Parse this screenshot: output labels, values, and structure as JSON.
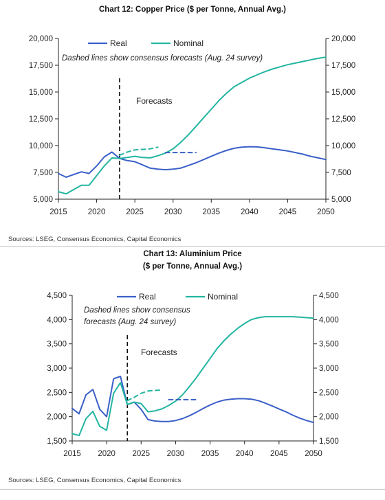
{
  "chart_data": [
    {
      "type": "line",
      "title": "Chart 12: Copper Price ($ per Tonne, Annual Avg.)",
      "annotation": "Dashed lines show consensus forecasts (Aug. 24 survey)",
      "forecast_label": "Forecasts",
      "forecast_start_year": 2023,
      "sources": "Sources: LSEG, Consensus Economics, Capital Economics",
      "xlim": [
        2015,
        2050
      ],
      "x_ticks": [
        2015,
        2020,
        2025,
        2030,
        2035,
        2040,
        2045,
        2050
      ],
      "ylim": [
        5000,
        20000
      ],
      "y_ticks": [
        5000,
        7500,
        10000,
        12500,
        15000,
        17500,
        20000
      ],
      "y_tick_labels": [
        "5,000",
        "7,500",
        "10,000",
        "12,500",
        "15,000",
        "17,500",
        "20,000"
      ],
      "legend": "top-left",
      "series": [
        {
          "name": "Real",
          "color": "#3a5fc8",
          "points": [
            [
              2015,
              7400
            ],
            [
              2016,
              7050
            ],
            [
              2017,
              7300
            ],
            [
              2018,
              7550
            ],
            [
              2019,
              7400
            ],
            [
              2020,
              8100
            ],
            [
              2021,
              8950
            ],
            [
              2022,
              9400
            ],
            [
              2023,
              8800
            ],
            [
              2024,
              8600
            ],
            [
              2025,
              8500
            ],
            [
              2026,
              8200
            ],
            [
              2027,
              7900
            ],
            [
              2028,
              7800
            ],
            [
              2029,
              7750
            ],
            [
              2030,
              7800
            ],
            [
              2031,
              7900
            ],
            [
              2032,
              8150
            ],
            [
              2033,
              8400
            ],
            [
              2034,
              8700
            ],
            [
              2035,
              9000
            ],
            [
              2036,
              9300
            ],
            [
              2037,
              9550
            ],
            [
              2038,
              9750
            ],
            [
              2039,
              9850
            ],
            [
              2040,
              9900
            ],
            [
              2041,
              9880
            ],
            [
              2042,
              9800
            ],
            [
              2043,
              9700
            ],
            [
              2044,
              9600
            ],
            [
              2045,
              9500
            ],
            [
              2046,
              9350
            ],
            [
              2047,
              9200
            ],
            [
              2048,
              9000
            ],
            [
              2049,
              8850
            ],
            [
              2050,
              8700
            ]
          ]
        },
        {
          "name": "Nominal",
          "color": "#22b5a0",
          "points": [
            [
              2015,
              5700
            ],
            [
              2016,
              5500
            ],
            [
              2017,
              5900
            ],
            [
              2018,
              6300
            ],
            [
              2019,
              6300
            ],
            [
              2020,
              7200
            ],
            [
              2021,
              8100
            ],
            [
              2022,
              8850
            ],
            [
              2023,
              8800
            ],
            [
              2024,
              8900
            ],
            [
              2025,
              9000
            ],
            [
              2026,
              8900
            ],
            [
              2027,
              8850
            ],
            [
              2028,
              9050
            ],
            [
              2029,
              9300
            ],
            [
              2030,
              9700
            ],
            [
              2031,
              10300
            ],
            [
              2032,
              11000
            ],
            [
              2033,
              11800
            ],
            [
              2034,
              12600
            ],
            [
              2035,
              13400
            ],
            [
              2036,
              14200
            ],
            [
              2037,
              14900
            ],
            [
              2038,
              15500
            ],
            [
              2039,
              15900
            ],
            [
              2040,
              16300
            ],
            [
              2041,
              16600
            ],
            [
              2042,
              16900
            ],
            [
              2043,
              17150
            ],
            [
              2044,
              17350
            ],
            [
              2045,
              17550
            ],
            [
              2046,
              17700
            ],
            [
              2047,
              17850
            ],
            [
              2048,
              18000
            ],
            [
              2049,
              18150
            ],
            [
              2050,
              18250
            ]
          ]
        },
        {
          "name": "Consensus (Real)",
          "color": "#3a5fc8",
          "dashed": true,
          "points": [
            [
              2029,
              9350
            ],
            [
              2033,
              9350
            ]
          ]
        },
        {
          "name": "Consensus (Nominal)",
          "color": "#22b5a0",
          "dashed": true,
          "points": [
            [
              2023,
              9100
            ],
            [
              2024,
              9400
            ],
            [
              2025,
              9600
            ],
            [
              2026,
              9650
            ],
            [
              2027,
              9700
            ],
            [
              2028,
              9850
            ]
          ]
        }
      ]
    },
    {
      "type": "line",
      "title": "Chart 13: Aluminium Price",
      "title_line2": "($ per Tonne, Annual Avg.)",
      "annotation_lines": [
        "Dashed lines show consensus",
        "forecasts (Aug. 24 survey)"
      ],
      "forecast_label": "Forecasts",
      "forecast_start_year": 2023,
      "sources": "Sources: LSEG, Consensus Economics, Capital Economics",
      "xlim": [
        2015,
        2050
      ],
      "x_ticks": [
        2015,
        2020,
        2025,
        2030,
        2035,
        2040,
        2045,
        2050
      ],
      "ylim": [
        1500,
        4500
      ],
      "y_ticks": [
        1500,
        2000,
        2500,
        3000,
        3500,
        4000,
        4500
      ],
      "y_tick_labels": [
        "1,500",
        "2,000",
        "2,500",
        "3,000",
        "3,500",
        "4,000",
        "4,500"
      ],
      "legend": "top-center",
      "series": [
        {
          "name": "Real",
          "color": "#3a5fc8",
          "points": [
            [
              2015,
              2170
            ],
            [
              2016,
              2060
            ],
            [
              2017,
              2450
            ],
            [
              2018,
              2560
            ],
            [
              2019,
              2150
            ],
            [
              2020,
              2000
            ],
            [
              2021,
              2780
            ],
            [
              2022,
              2830
            ],
            [
              2023,
              2250
            ],
            [
              2024,
              2300
            ],
            [
              2025,
              2150
            ],
            [
              2026,
              1940
            ],
            [
              2027,
              1910
            ],
            [
              2028,
              1900
            ],
            [
              2029,
              1900
            ],
            [
              2030,
              1920
            ],
            [
              2031,
              1960
            ],
            [
              2032,
              2020
            ],
            [
              2033,
              2090
            ],
            [
              2034,
              2170
            ],
            [
              2035,
              2240
            ],
            [
              2036,
              2300
            ],
            [
              2037,
              2340
            ],
            [
              2038,
              2360
            ],
            [
              2039,
              2370
            ],
            [
              2040,
              2370
            ],
            [
              2041,
              2360
            ],
            [
              2042,
              2330
            ],
            [
              2043,
              2280
            ],
            [
              2044,
              2220
            ],
            [
              2045,
              2160
            ],
            [
              2046,
              2100
            ],
            [
              2047,
              2030
            ],
            [
              2048,
              1970
            ],
            [
              2049,
              1920
            ],
            [
              2050,
              1880
            ]
          ]
        },
        {
          "name": "Nominal",
          "color": "#22b5a0",
          "points": [
            [
              2015,
              1650
            ],
            [
              2016,
              1610
            ],
            [
              2017,
              1960
            ],
            [
              2018,
              2110
            ],
            [
              2019,
              1800
            ],
            [
              2020,
              1720
            ],
            [
              2021,
              2480
            ],
            [
              2022,
              2700
            ],
            [
              2023,
              2250
            ],
            [
              2024,
              2300
            ],
            [
              2025,
              2270
            ],
            [
              2026,
              2100
            ],
            [
              2027,
              2120
            ],
            [
              2028,
              2160
            ],
            [
              2029,
              2230
            ],
            [
              2030,
              2320
            ],
            [
              2031,
              2450
            ],
            [
              2032,
              2620
            ],
            [
              2033,
              2800
            ],
            [
              2034,
              3000
            ],
            [
              2035,
              3200
            ],
            [
              2036,
              3400
            ],
            [
              2037,
              3560
            ],
            [
              2038,
              3700
            ],
            [
              2039,
              3820
            ],
            [
              2040,
              3920
            ],
            [
              2041,
              4000
            ],
            [
              2042,
              4040
            ],
            [
              2043,
              4060
            ],
            [
              2044,
              4060
            ],
            [
              2045,
              4060
            ],
            [
              2046,
              4060
            ],
            [
              2047,
              4060
            ],
            [
              2048,
              4050
            ],
            [
              2049,
              4040
            ],
            [
              2050,
              4030
            ]
          ]
        },
        {
          "name": "Consensus (Real)",
          "color": "#3a5fc8",
          "dashed": true,
          "points": [
            [
              2029,
              2350
            ],
            [
              2033,
              2350
            ]
          ]
        },
        {
          "name": "Consensus (Nominal)",
          "color": "#22b5a0",
          "dashed": true,
          "points": [
            [
              2023,
              2330
            ],
            [
              2024,
              2400
            ],
            [
              2025,
              2480
            ],
            [
              2026,
              2530
            ],
            [
              2027,
              2540
            ],
            [
              2028,
              2550
            ]
          ]
        }
      ]
    }
  ]
}
